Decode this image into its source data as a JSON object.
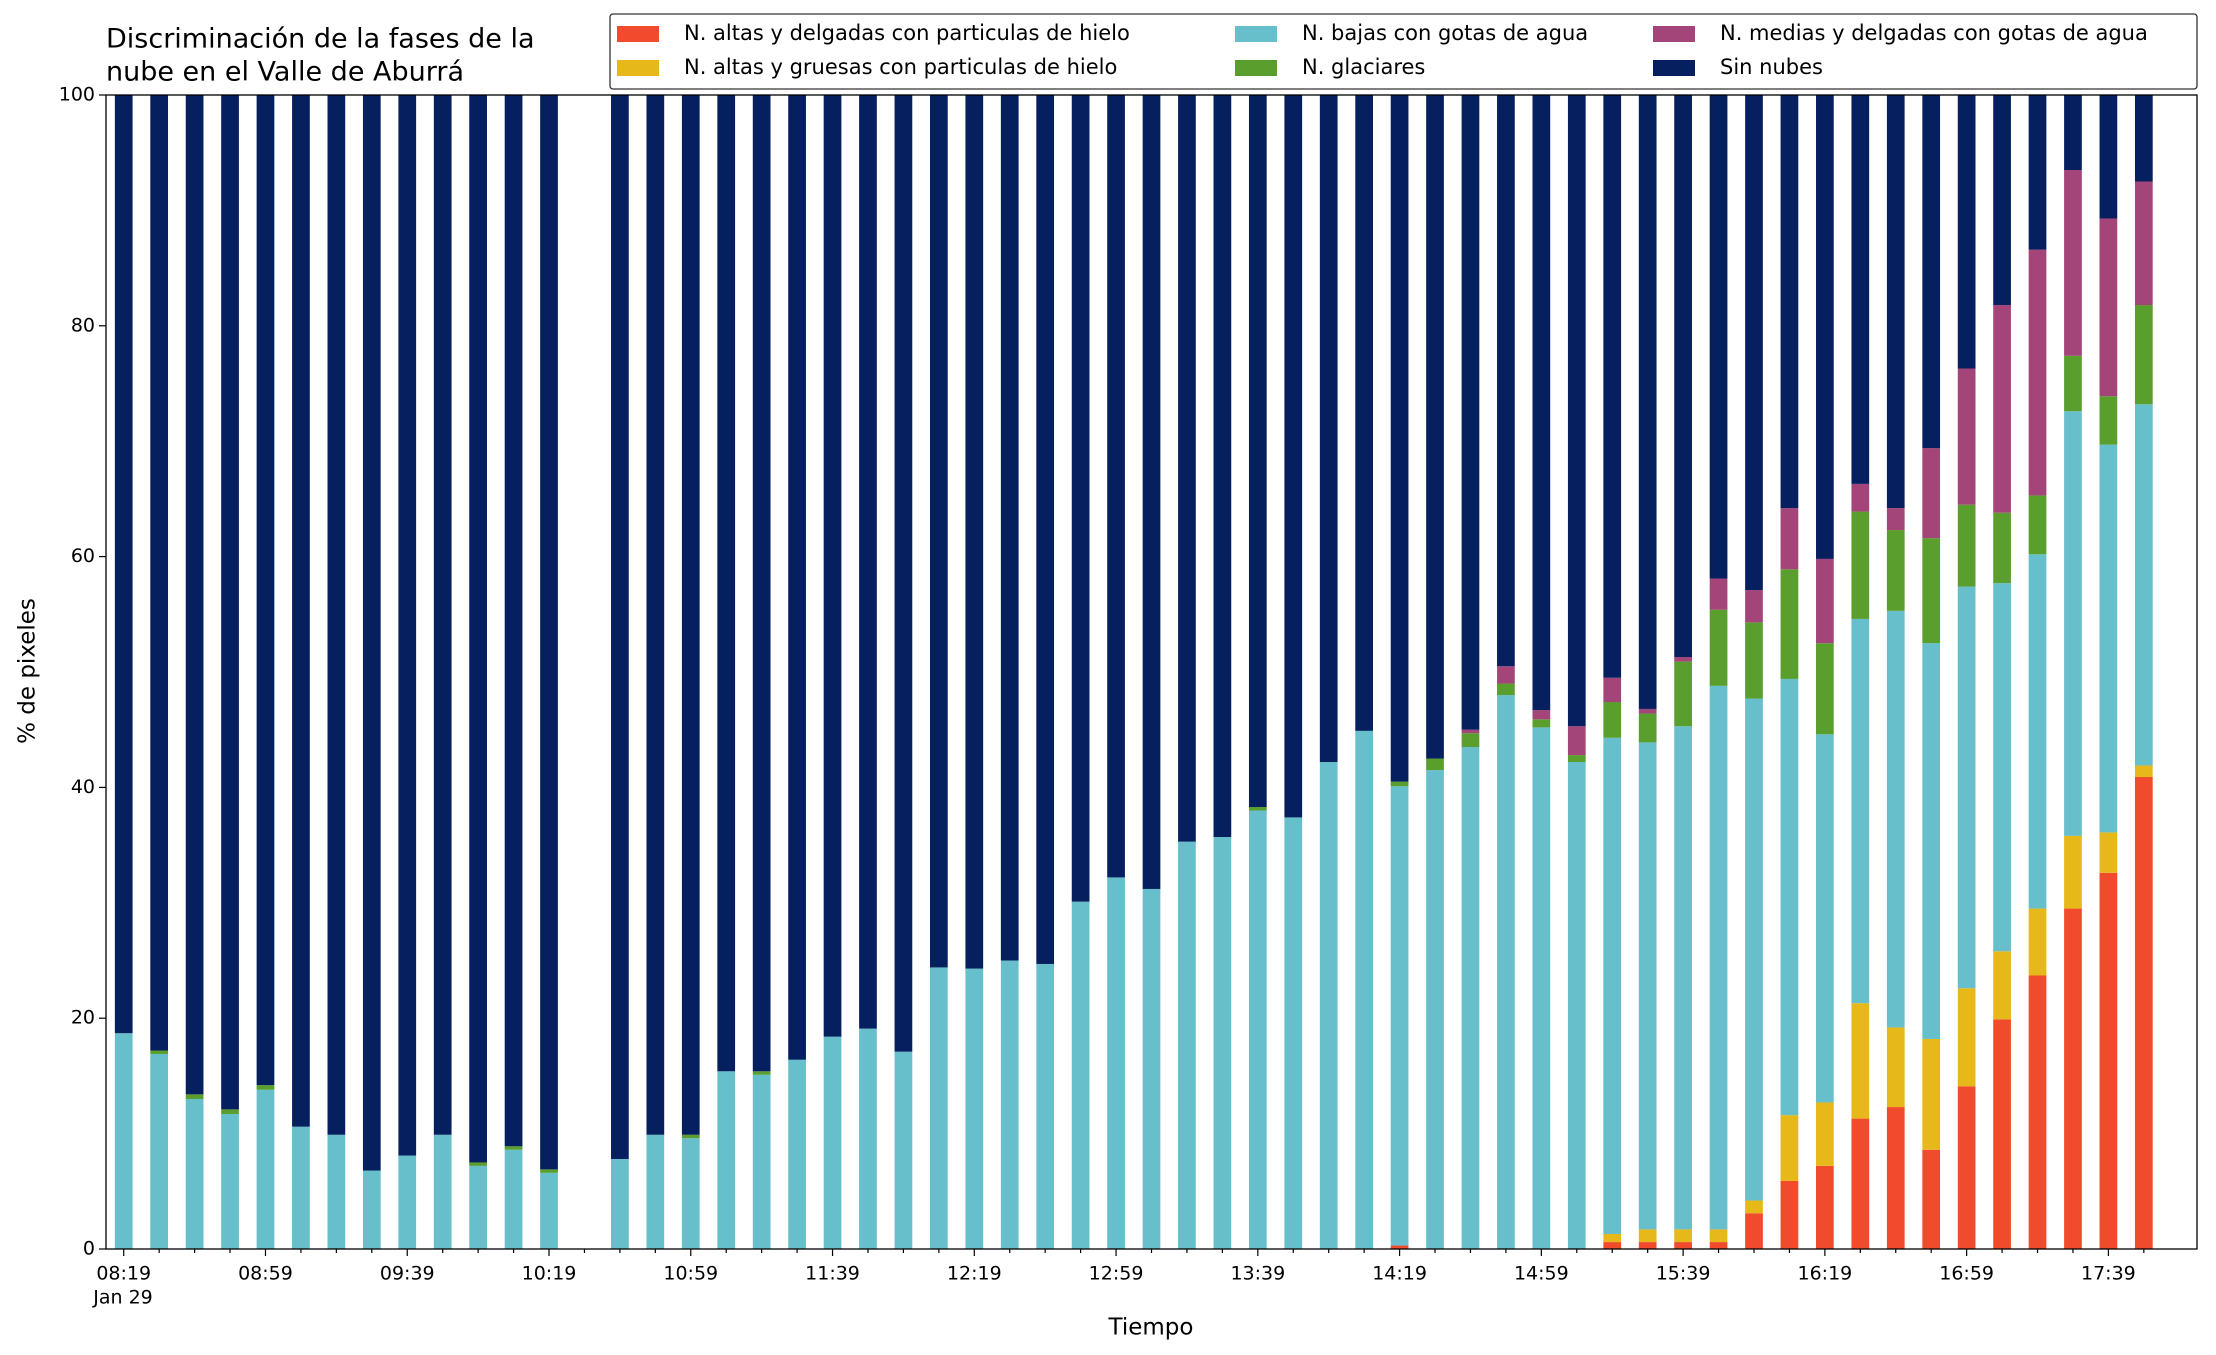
{
  "chart_data": {
    "type": "stacked_bar",
    "title": [
      "Discriminación de la fases de la",
      "nube en el Valle de Aburrá"
    ],
    "x_label": "Tiempo",
    "y_label": "% de pixeles",
    "x_date_label": "Jan 29",
    "legend_ncol": 3,
    "categories": [
      "08:19",
      null,
      null,
      null,
      "08:59",
      null,
      null,
      null,
      "09:39",
      null,
      null,
      null,
      "10:19",
      null,
      null,
      null,
      "10:59",
      null,
      null,
      null,
      "11:39",
      null,
      null,
      null,
      "12:19",
      null,
      null,
      null,
      "12:59",
      null,
      null,
      null,
      "13:39",
      null,
      null,
      null,
      "14:19",
      null,
      null,
      null,
      "14:59",
      null,
      null,
      null,
      "15:39",
      null,
      null,
      null,
      "16:19",
      null,
      null,
      null,
      "16:59",
      null,
      null,
      null,
      "17:39",
      null
    ],
    "ylim": [
      0,
      100
    ],
    "yticks": [
      0,
      20,
      40,
      60,
      80,
      100
    ],
    "series": [
      {
        "name": "N. altas y delgadas con particulas de hielo",
        "color": "#f04b2c",
        "values": [
          0,
          0,
          0,
          0,
          0,
          0,
          0,
          0,
          0,
          0,
          0,
          0,
          0,
          null,
          0,
          0,
          0,
          0,
          0,
          0,
          0,
          0,
          0,
          0,
          0,
          0,
          0,
          0,
          0,
          0,
          0,
          0,
          0,
          0,
          0,
          0,
          0.3,
          0,
          0,
          0,
          0,
          0,
          0.6,
          0.6,
          0.6,
          0.6,
          3.1,
          5.9,
          7.2,
          11.3,
          12.3,
          8.6,
          14.1,
          19.9,
          23.7,
          29.5,
          32.6,
          40.9
        ]
      },
      {
        "name": "N. altas y gruesas con particulas de hielo",
        "color": "#e6b81a",
        "values": [
          0,
          0,
          0,
          0,
          0,
          0,
          0,
          0,
          0,
          0,
          0,
          0,
          0,
          null,
          0,
          0,
          0,
          0,
          0,
          0,
          0,
          0,
          0,
          0,
          0,
          0,
          0,
          0,
          0,
          0,
          0,
          0,
          0,
          0,
          0,
          0,
          0,
          0,
          0,
          0,
          0,
          0,
          0.7,
          1.1,
          1.1,
          1.1,
          1.1,
          5.7,
          5.5,
          10.0,
          6.9,
          9.6,
          8.5,
          5.9,
          5.8,
          6.3,
          3.5,
          1.0
        ]
      },
      {
        "name": "N. bajas con gotas de agua",
        "color": "#67bfcb",
        "values": [
          18.7,
          16.9,
          13.0,
          11.7,
          13.8,
          10.6,
          9.9,
          6.8,
          8.1,
          9.9,
          7.2,
          8.6,
          6.6,
          null,
          7.8,
          9.9,
          9.6,
          15.4,
          15.1,
          16.4,
          18.4,
          19.1,
          17.1,
          24.4,
          24.3,
          25.0,
          24.7,
          30.1,
          32.2,
          31.2,
          35.3,
          35.7,
          38.0,
          37.4,
          42.2,
          44.9,
          39.8,
          41.5,
          43.5,
          48.0,
          45.2,
          42.2,
          43.0,
          42.2,
          43.6,
          47.1,
          43.5,
          37.8,
          31.9,
          33.3,
          36.1,
          34.3,
          34.8,
          31.9,
          30.7,
          36.8,
          33.6,
          31.3
        ]
      },
      {
        "name": "N. glaciares",
        "color": "#5a9e2e",
        "values": [
          0,
          0.3,
          0.4,
          0.4,
          0.4,
          0,
          0,
          0,
          0,
          0,
          0.3,
          0.3,
          0.3,
          null,
          0,
          0,
          0.3,
          0,
          0.3,
          0,
          0,
          0,
          0,
          0,
          0,
          0,
          0,
          0,
          0,
          0,
          0,
          0,
          0.3,
          0,
          0,
          0,
          0.4,
          1.0,
          1.2,
          1.0,
          0.7,
          0.6,
          3.1,
          2.5,
          5.6,
          6.6,
          6.6,
          9.5,
          7.9,
          9.3,
          7.0,
          9.1,
          7.1,
          6.1,
          5.1,
          4.8,
          4.2,
          8.6
        ]
      },
      {
        "name": "N. medias y delgadas con gotas de agua",
        "color": "#a4457a",
        "values": [
          0,
          0,
          0,
          0,
          0,
          0,
          0,
          0,
          0,
          0,
          0,
          0,
          0,
          null,
          0,
          0,
          0,
          0,
          0,
          0,
          0,
          0,
          0,
          0,
          0,
          0,
          0,
          0,
          0,
          0,
          0,
          0,
          0,
          0,
          0,
          0,
          0,
          0,
          0.3,
          1.5,
          0.8,
          2.5,
          2.1,
          0.4,
          0.4,
          2.7,
          2.8,
          5.3,
          7.3,
          2.4,
          1.9,
          7.8,
          11.8,
          18.0,
          21.3,
          16.1,
          15.4,
          10.7
        ]
      },
      {
        "name": "Sin nubes",
        "color": "#061f5e",
        "values": [
          81.3,
          82.8,
          86.6,
          87.9,
          85.8,
          89.4,
          90.1,
          93.2,
          91.9,
          90.1,
          92.5,
          91.1,
          93.1,
          null,
          92.2,
          90.1,
          90.1,
          84.6,
          84.6,
          83.6,
          81.6,
          80.9,
          82.9,
          75.6,
          75.7,
          75.0,
          75.3,
          69.9,
          67.8,
          68.8,
          64.7,
          64.3,
          61.7,
          62.6,
          57.8,
          55.1,
          59.5,
          57.5,
          55.0,
          49.5,
          53.3,
          54.7,
          50.5,
          53.2,
          48.7,
          41.9,
          42.9,
          35.8,
          40.2,
          33.7,
          35.8,
          30.6,
          23.7,
          18.2,
          13.4,
          6.5,
          10.7,
          7.5
        ]
      }
    ]
  }
}
